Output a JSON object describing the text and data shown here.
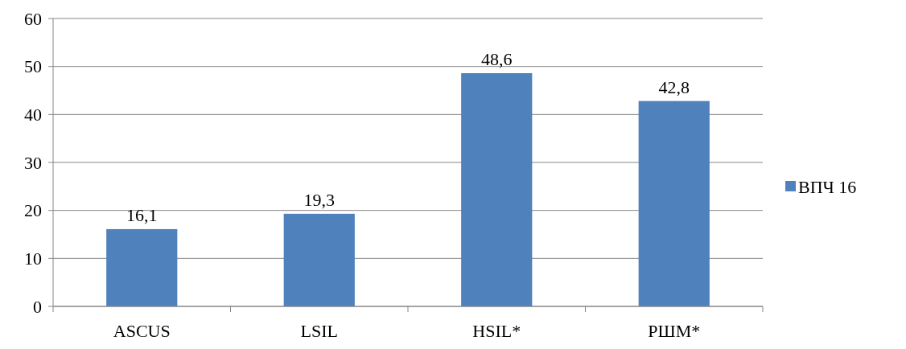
{
  "chart_data": {
    "type": "bar",
    "categories": [
      "ASCUS",
      "LSIL",
      "HSIL*",
      "РШМ*"
    ],
    "series": [
      {
        "name": "ВПЧ 16",
        "color": "#4f81bd",
        "values": [
          16.1,
          19.3,
          48.6,
          42.8
        ],
        "value_labels": [
          "16,1",
          "19,3",
          "48,6",
          "42,8"
        ]
      }
    ],
    "ylim": [
      0,
      60
    ],
    "yticks": [
      0,
      10,
      20,
      30,
      40,
      50,
      60
    ],
    "grid": "y",
    "legend": "right"
  }
}
